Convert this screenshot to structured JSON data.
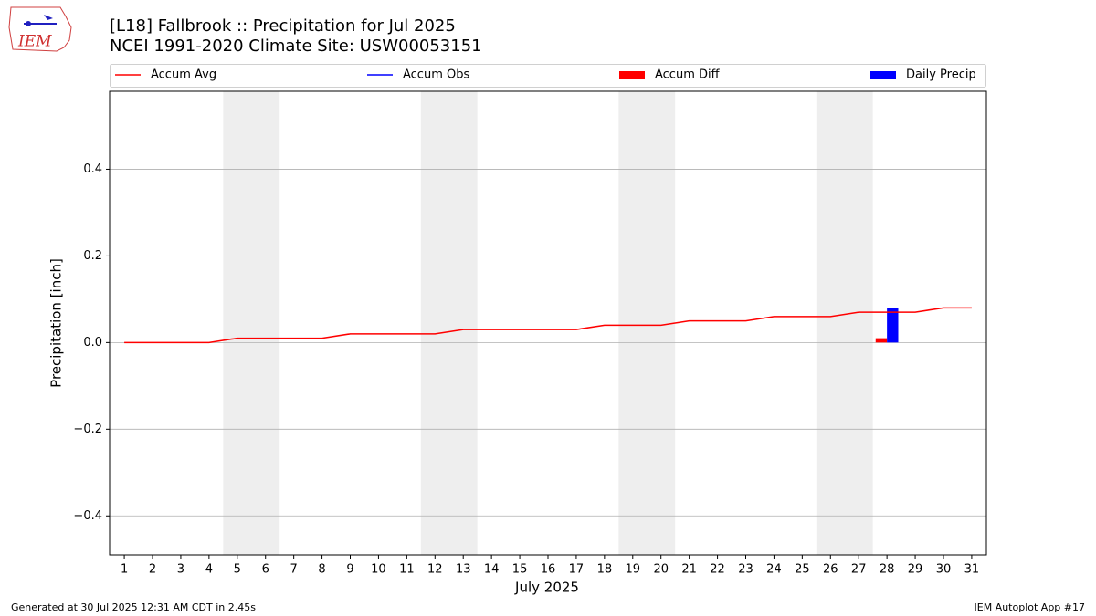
{
  "logo": "IEM",
  "footer_left": "Generated at 30 Jul 2025 12:31 AM CDT in 2.45s",
  "footer_right": "IEM Autoplot App #17",
  "chart_data": {
    "type": "line",
    "title": "[L18] Fallbrook :: Precipitation for Jul 2025",
    "subtitle": "NCEI 1991-2020 Climate Site: USW00053151",
    "xlabel": "July 2025",
    "ylabel": "Precipitation [inch]",
    "x": [
      1,
      2,
      3,
      4,
      5,
      6,
      7,
      8,
      9,
      10,
      11,
      12,
      13,
      14,
      15,
      16,
      17,
      18,
      19,
      20,
      21,
      22,
      23,
      24,
      25,
      26,
      27,
      28,
      29,
      30,
      31
    ],
    "xlim": [
      0.48,
      31.52
    ],
    "xticks": [
      1,
      2,
      3,
      4,
      5,
      6,
      7,
      8,
      9,
      10,
      11,
      12,
      13,
      14,
      15,
      16,
      17,
      18,
      19,
      20,
      21,
      22,
      23,
      24,
      25,
      26,
      27,
      28,
      29,
      30,
      31
    ],
    "ylim": [
      -0.49,
      0.58
    ],
    "yticks": [
      {
        "value": -0.4,
        "label": "−0.4"
      },
      {
        "value": -0.2,
        "label": "−0.2"
      },
      {
        "value": 0,
        "label": "0.0"
      },
      0.2,
      0.4
    ],
    "grid": "y",
    "shaded_ranges": [
      [
        4.5,
        6.5
      ],
      [
        11.5,
        13.5
      ],
      [
        18.5,
        20.5
      ],
      [
        25.5,
        27.5
      ]
    ],
    "series": [
      {
        "name": "Accum Avg",
        "color": "#ff0000",
        "values": [
          0,
          0,
          0,
          0,
          0.01,
          0.01,
          0.01,
          0.01,
          0.02,
          0.02,
          0.02,
          0.02,
          0.03,
          0.03,
          0.03,
          0.03,
          0.03,
          0.04,
          0.04,
          0.04,
          0.05,
          0.05,
          0.05,
          0.06,
          0.06,
          0.06,
          0.07,
          0.07,
          0.07,
          0.08,
          0.08
        ]
      },
      {
        "name": "Accum Obs",
        "color": "#0000ff"
      }
    ],
    "bars": [
      {
        "name": "Accum Diff",
        "color": "#ff0000",
        "x": [
          28
        ],
        "values": [
          0.01
        ]
      },
      {
        "name": "Daily Precip",
        "color": "#0000ff",
        "x": [
          28
        ],
        "values": [
          0.08
        ]
      }
    ]
  }
}
